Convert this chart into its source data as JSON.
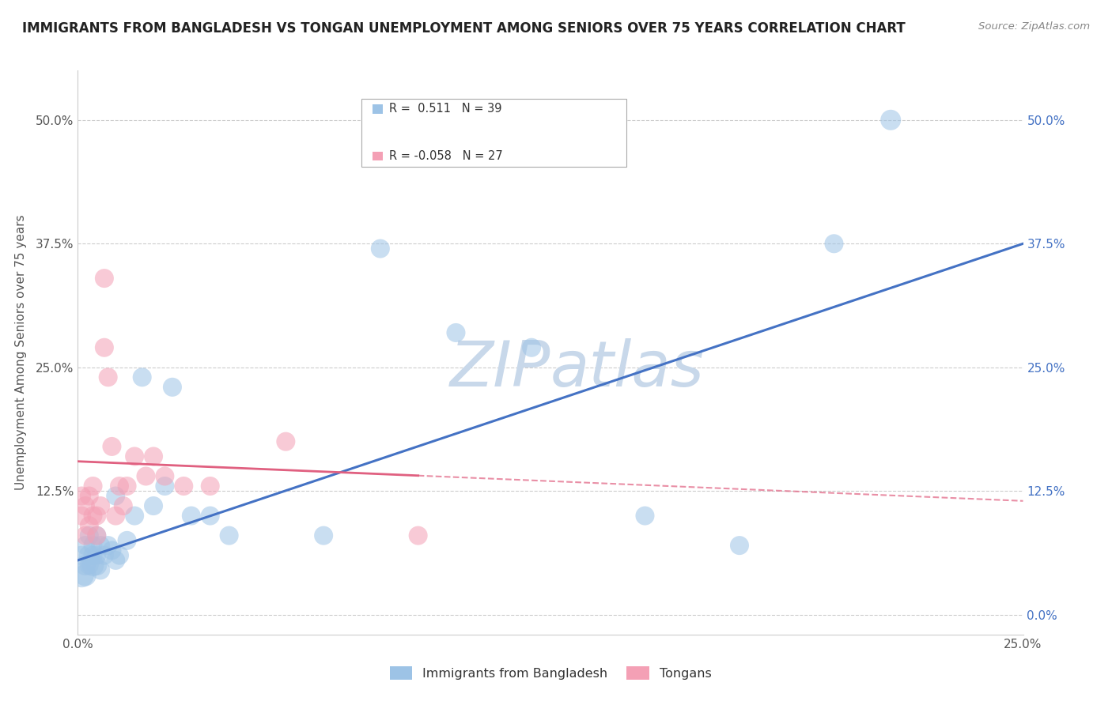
{
  "title": "IMMIGRANTS FROM BANGLADESH VS TONGAN UNEMPLOYMENT AMONG SENIORS OVER 75 YEARS CORRELATION CHART",
  "source": "Source: ZipAtlas.com",
  "ylabel": "Unemployment Among Seniors over 75 years",
  "legend_labels": [
    "Immigrants from Bangladesh",
    "Tongans"
  ],
  "r_bangladesh": 0.511,
  "n_bangladesh": 39,
  "r_tongan": -0.058,
  "n_tongan": 27,
  "xlim": [
    0.0,
    0.25
  ],
  "ylim": [
    -0.02,
    0.55
  ],
  "xticks": [
    0.0,
    0.05,
    0.1,
    0.15,
    0.2,
    0.25
  ],
  "yticks": [
    0.0,
    0.125,
    0.25,
    0.375,
    0.5
  ],
  "ytick_labels_left": [
    "",
    "12.5%",
    "25.0%",
    "37.5%",
    "50.0%"
  ],
  "ytick_labels_right": [
    "0.0%",
    "12.5%",
    "25.0%",
    "37.5%",
    "50.0%"
  ],
  "xtick_labels": [
    "0.0%",
    "",
    "",
    "",
    "",
    "25.0%"
  ],
  "color_bangladesh": "#9DC3E6",
  "color_tongan": "#F4A0B5",
  "trend_color_bangladesh": "#4472C4",
  "trend_color_tongan": "#E06080",
  "background_color": "#FFFFFF",
  "watermark_color": "#C8D8EA",
  "bangladesh_x": [
    0.001,
    0.001,
    0.002,
    0.002,
    0.002,
    0.003,
    0.003,
    0.003,
    0.004,
    0.004,
    0.004,
    0.005,
    0.005,
    0.005,
    0.006,
    0.006,
    0.007,
    0.008,
    0.009,
    0.01,
    0.01,
    0.011,
    0.013,
    0.015,
    0.017,
    0.02,
    0.023,
    0.025,
    0.03,
    0.035,
    0.04,
    0.065,
    0.08,
    0.1,
    0.12,
    0.15,
    0.175,
    0.2,
    0.215
  ],
  "bangladesh_y": [
    0.06,
    0.04,
    0.05,
    0.07,
    0.04,
    0.05,
    0.06,
    0.08,
    0.06,
    0.05,
    0.07,
    0.05,
    0.06,
    0.08,
    0.045,
    0.07,
    0.06,
    0.07,
    0.065,
    0.055,
    0.12,
    0.06,
    0.075,
    0.1,
    0.24,
    0.11,
    0.13,
    0.23,
    0.1,
    0.1,
    0.08,
    0.08,
    0.37,
    0.285,
    0.27,
    0.1,
    0.07,
    0.375,
    0.5
  ],
  "bangladesh_sizes": [
    300,
    500,
    350,
    300,
    400,
    300,
    350,
    300,
    300,
    400,
    300,
    350,
    300,
    300,
    300,
    300,
    300,
    300,
    300,
    300,
    300,
    300,
    300,
    300,
    300,
    300,
    300,
    300,
    300,
    300,
    300,
    300,
    300,
    300,
    300,
    300,
    300,
    300,
    350
  ],
  "tongan_x": [
    0.001,
    0.001,
    0.002,
    0.002,
    0.003,
    0.003,
    0.004,
    0.004,
    0.005,
    0.005,
    0.006,
    0.007,
    0.007,
    0.008,
    0.009,
    0.01,
    0.011,
    0.012,
    0.013,
    0.015,
    0.018,
    0.02,
    0.023,
    0.028,
    0.035,
    0.055,
    0.09
  ],
  "tongan_y": [
    0.1,
    0.12,
    0.08,
    0.11,
    0.09,
    0.12,
    0.1,
    0.13,
    0.08,
    0.1,
    0.11,
    0.27,
    0.34,
    0.24,
    0.17,
    0.1,
    0.13,
    0.11,
    0.13,
    0.16,
    0.14,
    0.16,
    0.14,
    0.13,
    0.13,
    0.175,
    0.08
  ],
  "tongan_sizes": [
    300,
    300,
    300,
    300,
    300,
    300,
    300,
    300,
    300,
    300,
    300,
    300,
    300,
    300,
    300,
    300,
    300,
    300,
    300,
    300,
    300,
    300,
    300,
    300,
    300,
    300,
    300
  ],
  "trend_b_x0": 0.0,
  "trend_b_y0": 0.055,
  "trend_b_x1": 0.25,
  "trend_b_y1": 0.375,
  "trend_t_x0": 0.0,
  "trend_t_y0": 0.155,
  "trend_t_x1": 0.25,
  "trend_t_y1": 0.115
}
